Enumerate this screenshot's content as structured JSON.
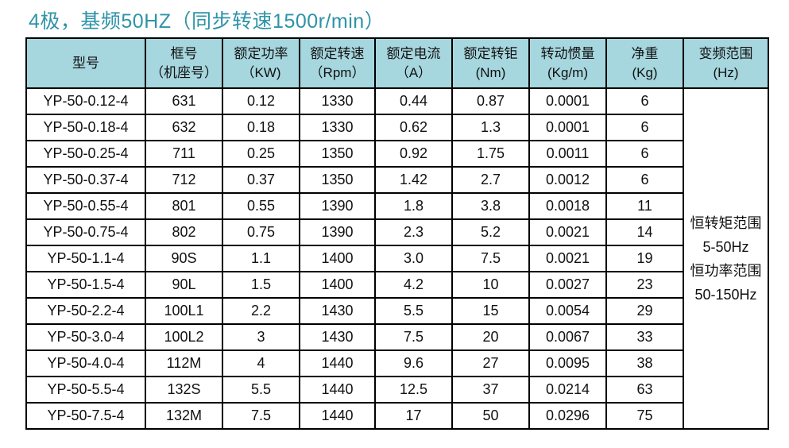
{
  "title": "4极，基频50HZ（同步转速1500r/min）",
  "colors": {
    "title_text": "#2e93a8",
    "header_bg": "#a6d6de",
    "grid_border": "#000000",
    "body_text": "#111111",
    "page_bg": "#ffffff"
  },
  "table": {
    "headers": [
      {
        "line1": "型号",
        "line2": ""
      },
      {
        "line1": "框号",
        "line2": "（机座号）"
      },
      {
        "line1": "额定功率",
        "line2": "（KW)"
      },
      {
        "line1": "额定转速",
        "line2": "（Rpm）"
      },
      {
        "line1": "额定电流",
        "line2": "（A）"
      },
      {
        "line1": "额定转钜",
        "line2": "(Nm)"
      },
      {
        "line1": "转动惯量",
        "line2": "(Kg/m)"
      },
      {
        "line1": "净重",
        "line2": "(Kg)"
      },
      {
        "line1": "变频范围",
        "line2": "(Hz)"
      }
    ],
    "rows": [
      [
        "YP-50-0.12-4",
        "631",
        "0.12",
        "1330",
        "0.44",
        "0.87",
        "0.0001",
        "6"
      ],
      [
        "YP-50-0.18-4",
        "632",
        "0.18",
        "1330",
        "0.62",
        "1.3",
        "0.0001",
        "6"
      ],
      [
        "YP-50-0.25-4",
        "711",
        "0.25",
        "1350",
        "0.92",
        "1.75",
        "0.0011",
        "6"
      ],
      [
        "YP-50-0.37-4",
        "712",
        "0.37",
        "1350",
        "1.42",
        "2.7",
        "0.0012",
        "6"
      ],
      [
        "YP-50-0.55-4",
        "801",
        "0.55",
        "1390",
        "1.8",
        "3.8",
        "0.0018",
        "11"
      ],
      [
        "YP-50-0.75-4",
        "802",
        "0.75",
        "1390",
        "2.3",
        "5.2",
        "0.0021",
        "14"
      ],
      [
        "YP-50-1.1-4",
        "90S",
        "1.1",
        "1400",
        "3.0",
        "7.5",
        "0.0021",
        "19"
      ],
      [
        "YP-50-1.5-4",
        "90L",
        "1.5",
        "1400",
        "4.2",
        "10",
        "0.0027",
        "23"
      ],
      [
        "YP-50-2.2-4",
        "100L1",
        "2.2",
        "1430",
        "5.5",
        "15",
        "0.0054",
        "29"
      ],
      [
        "YP-50-3.0-4",
        "100L2",
        "3",
        "1430",
        "7.5",
        "20",
        "0.0067",
        "33"
      ],
      [
        "YP-50-4.0-4",
        "112M",
        "4",
        "1440",
        "9.6",
        "27",
        "0.0095",
        "38"
      ],
      [
        "YP-50-5.5-4",
        "132S",
        "5.5",
        "1440",
        "12.5",
        "37",
        "0.0214",
        "63"
      ],
      [
        "YP-50-7.5-4",
        "132M",
        "7.5",
        "1440",
        "17",
        "50",
        "0.0296",
        "75"
      ]
    ],
    "note_lines": [
      "恒转矩范围",
      "5-50Hz",
      "恒功率范围",
      "50-150Hz"
    ]
  }
}
